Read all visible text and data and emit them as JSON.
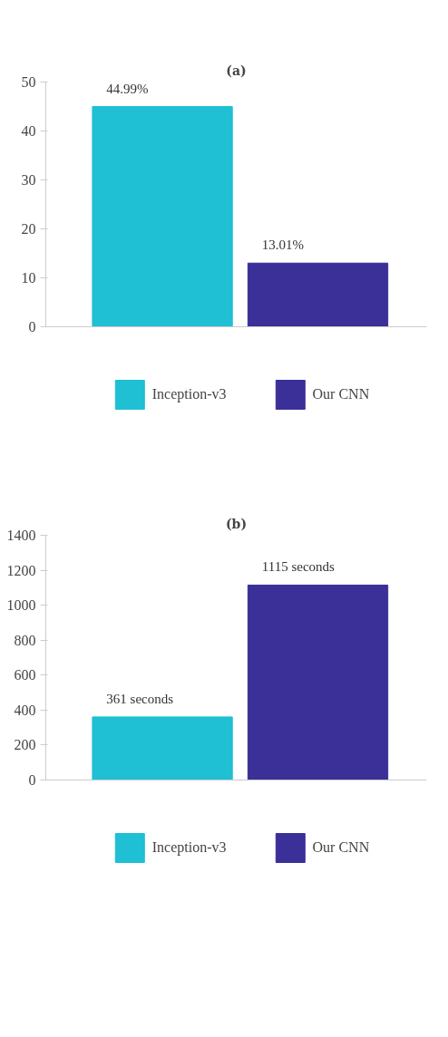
{
  "chart_data": [
    {
      "type": "bar",
      "title": "(a)",
      "categories": [
        null,
        null
      ],
      "series": [
        {
          "name": "Inception-v3",
          "color": "#1fbfd4",
          "values": [
            44.99,
            null
          ],
          "value_labels": [
            "44.99%",
            null
          ]
        },
        {
          "name": "Our CNN",
          "color": "#3b2f98",
          "values": [
            null,
            13.01
          ],
          "value_labels": [
            null,
            "13.01%"
          ]
        }
      ],
      "ylim": [
        0,
        50
      ],
      "yticks": [
        0,
        10,
        20,
        30,
        40,
        50
      ],
      "grid": false,
      "legend": "bottom"
    },
    {
      "type": "bar",
      "title": "(b)",
      "categories": [
        null,
        null
      ],
      "series": [
        {
          "name": "Inception-v3",
          "color": "#1fbfd4",
          "values": [
            361,
            null
          ],
          "value_labels": [
            "361 seconds",
            null
          ]
        },
        {
          "name": "Our CNN",
          "color": "#3b2f98",
          "values": [
            null,
            1115
          ],
          "value_labels": [
            null,
            "1115 seconds"
          ]
        }
      ],
      "ylim": [
        0,
        1400
      ],
      "yticks": [
        0,
        200,
        400,
        600,
        800,
        1000,
        1200,
        1400
      ],
      "grid": false,
      "legend": "bottom"
    }
  ]
}
